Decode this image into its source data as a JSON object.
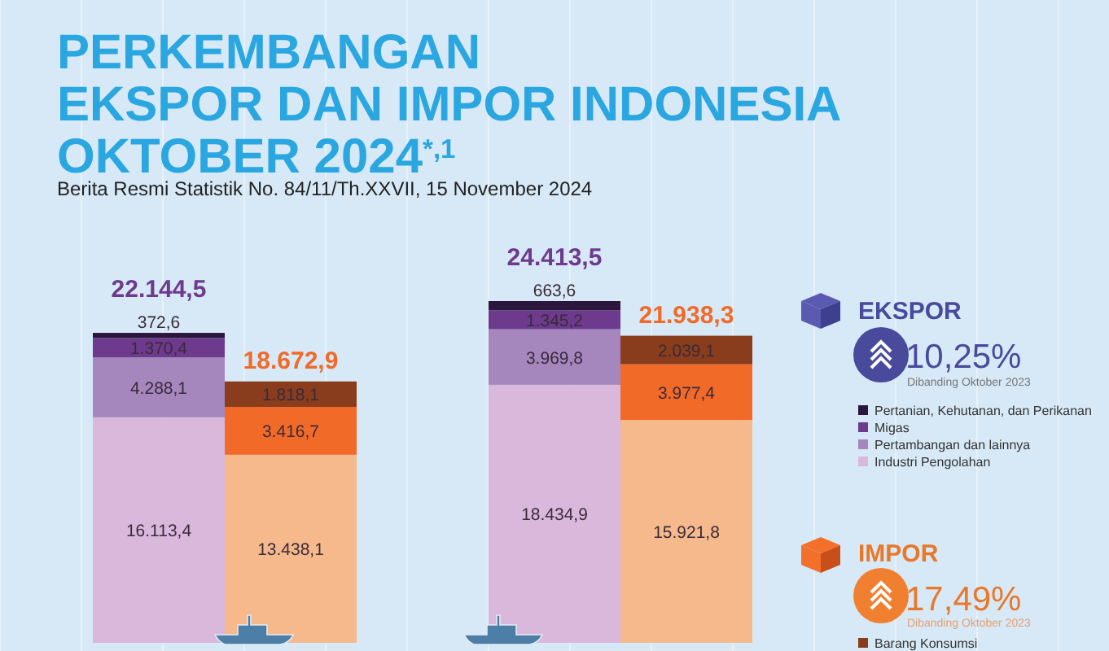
{
  "chart_data": {
    "type": "bar",
    "stacked": true,
    "title": "PERKEMBANGAN\nEKSPOR DAN IMPOR INDONESIA\nOKTOBER 2024$^{*,1}$",
    "subtitle": "Berita Resmi Statistik No. 84/11/Th.XXVII, 15 November 2024",
    "categories": [
      null,
      null,
      null,
      null
    ],
    "series": [
      {
        "name": "Industri Pengolahan",
        "color": "#d9b8dc",
        "values": [
          16113.4,
          null,
          18434.9,
          null
        ],
        "value_labels": [
          "16.113,4",
          null,
          "18.434,9",
          null
        ]
      },
      {
        "name": "Pertambangan dan lainnya",
        "color": "#a586bd",
        "values": [
          4288.1,
          null,
          3969.8,
          null
        ],
        "value_labels": [
          "4.288,1",
          null,
          "3.969,8",
          null
        ]
      },
      {
        "name": "Migas",
        "color": "#6e3a8e",
        "values": [
          1370.4,
          null,
          1345.2,
          null
        ],
        "value_labels": [
          "1.370,4",
          null,
          "1.345,2",
          null
        ]
      },
      {
        "name": "Pertanian, Kehutanan, dan Perikanan",
        "color": "#2b173d",
        "values": [
          372.6,
          null,
          663.6,
          null
        ],
        "value_labels": [
          "372,6",
          null,
          "663,6",
          null
        ]
      },
      {
        "color": "#f5b98c",
        "values": [
          null,
          13438.1,
          null,
          15921.8
        ],
        "value_labels": [
          null,
          "13.438,1",
          null,
          "15.921,8"
        ]
      },
      {
        "color": "#f26a28",
        "values": [
          null,
          3416.7,
          null,
          3977.4
        ],
        "value_labels": [
          null,
          "3.416,7",
          null,
          "3.977,4"
        ]
      },
      {
        "name": "Barang Konsumsi",
        "color": "#8a3d1c",
        "values": [
          null,
          1818.1,
          null,
          2039.1
        ],
        "value_labels": [
          null,
          "1.818,1",
          null,
          "2.039,1"
        ]
      }
    ],
    "totals": [
      "22.144,5",
      "18.672,9",
      "24.413,5",
      "21.938,3"
    ],
    "legend": "right",
    "annotations": [
      "EKSPOR",
      "10,25%",
      "Dibanding Oktober 2023",
      "IMPOR",
      "17,49%",
      "Dibanding Oktober 2023"
    ]
  }
}
